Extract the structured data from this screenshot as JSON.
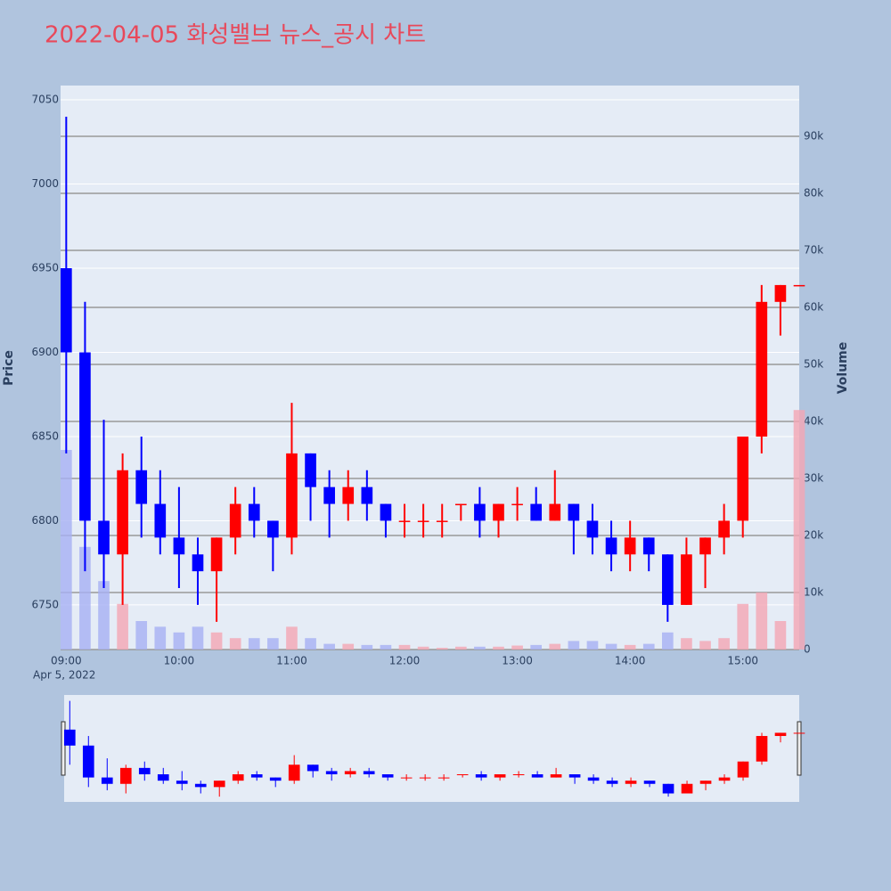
{
  "chart_data": {
    "type": "candlestick",
    "title": "2022-04-05 화성밸브 뉴스_공시 차트",
    "y_title": "Price",
    "y2_title": "Volume",
    "x_date_label": "Apr 5, 2022",
    "increasing_color": "#ff0000",
    "decreasing_color": "#0000ff",
    "volume_up_color": "#f4a6b4",
    "volume_down_color": "#a6b0f4",
    "x": [
      "2022-04-05 09:00",
      "2022-04-05 09:10",
      "2022-04-05 09:20",
      "2022-04-05 09:30",
      "2022-04-05 09:40",
      "2022-04-05 09:50",
      "2022-04-05 10:00",
      "2022-04-05 10:10",
      "2022-04-05 10:20",
      "2022-04-05 10:30",
      "2022-04-05 10:40",
      "2022-04-05 10:50",
      "2022-04-05 11:00",
      "2022-04-05 11:10",
      "2022-04-05 11:20",
      "2022-04-05 11:30",
      "2022-04-05 11:40",
      "2022-04-05 11:50",
      "2022-04-05 12:00",
      "2022-04-05 12:10",
      "2022-04-05 12:20",
      "2022-04-05 12:30",
      "2022-04-05 12:40",
      "2022-04-05 12:50",
      "2022-04-05 13:00",
      "2022-04-05 13:10",
      "2022-04-05 13:20",
      "2022-04-05 13:30",
      "2022-04-05 13:40",
      "2022-04-05 13:50",
      "2022-04-05 14:00",
      "2022-04-05 14:10",
      "2022-04-05 14:20",
      "2022-04-05 14:30",
      "2022-04-05 14:40",
      "2022-04-05 14:50",
      "2022-04-05 15:00",
      "2022-04-05 15:10",
      "2022-04-05 15:20",
      "2022-04-05 15:30"
    ],
    "open": [
      6950,
      6900,
      6800,
      6780,
      6830,
      6810,
      6790,
      6780,
      6770,
      6790,
      6810,
      6800,
      6790,
      6840,
      6820,
      6810,
      6820,
      6810,
      6800,
      6800,
      6800,
      6810,
      6810,
      6800,
      6810,
      6810,
      6800,
      6810,
      6800,
      6790,
      6780,
      6790,
      6780,
      6750,
      6780,
      6790,
      6800,
      6850,
      6930,
      6940
    ],
    "high": [
      7040,
      6930,
      6860,
      6840,
      6850,
      6830,
      6820,
      6790,
      6790,
      6820,
      6820,
      6800,
      6870,
      6840,
      6830,
      6830,
      6830,
      6810,
      6810,
      6810,
      6810,
      6810,
      6820,
      6810,
      6820,
      6820,
      6830,
      6810,
      6810,
      6800,
      6800,
      6790,
      6780,
      6790,
      6790,
      6810,
      6850,
      6940,
      6940,
      6940
    ],
    "low": [
      6840,
      6770,
      6760,
      6750,
      6790,
      6780,
      6760,
      6750,
      6740,
      6780,
      6790,
      6770,
      6780,
      6800,
      6790,
      6800,
      6800,
      6790,
      6790,
      6790,
      6790,
      6800,
      6790,
      6790,
      6800,
      6800,
      6800,
      6780,
      6780,
      6770,
      6770,
      6770,
      6740,
      6750,
      6760,
      6780,
      6790,
      6840,
      6910,
      6940
    ],
    "close": [
      6900,
      6800,
      6780,
      6830,
      6810,
      6790,
      6780,
      6770,
      6790,
      6810,
      6800,
      6790,
      6840,
      6820,
      6810,
      6820,
      6810,
      6800,
      6800,
      6800,
      6800,
      6810,
      6800,
      6810,
      6810,
      6800,
      6810,
      6800,
      6790,
      6780,
      6790,
      6780,
      6750,
      6780,
      6790,
      6800,
      6850,
      6930,
      6940,
      6940
    ],
    "volume": [
      35000,
      18000,
      12000,
      8000,
      5000,
      4000,
      3000,
      4000,
      3000,
      2000,
      2000,
      2000,
      4000,
      2000,
      1000,
      1000,
      800,
      800,
      800,
      500,
      300,
      500,
      500,
      500,
      700,
      800,
      1000,
      1500,
      1500,
      1000,
      800,
      1000,
      3000,
      2000,
      1500,
      2000,
      8000,
      10000,
      5000,
      42000
    ],
    "xlim": [
      "2022-04-05 08:57",
      "2022-04-05 15:30"
    ],
    "xticks": [
      {
        "value": "2022-04-05 09:00",
        "label": "09:00"
      },
      {
        "value": "2022-04-05 10:00",
        "label": "10:00"
      },
      {
        "value": "2022-04-05 11:00",
        "label": "11:00"
      },
      {
        "value": "2022-04-05 12:00",
        "label": "12:00"
      },
      {
        "value": "2022-04-05 13:00",
        "label": "13:00"
      },
      {
        "value": "2022-04-05 14:00",
        "label": "14:00"
      },
      {
        "value": "2022-04-05 15:00",
        "label": "15:00"
      }
    ],
    "ylim": [
      6723.5,
      7058.5
    ],
    "yticks": [
      6750,
      6800,
      6850,
      6900,
      6950,
      7000,
      7050
    ],
    "y2lim": [
      0,
      98900
    ],
    "y2ticks": [
      0,
      {
        "value": 10000,
        "label": "10k"
      },
      {
        "value": 20000,
        "label": "20k"
      },
      {
        "value": 30000,
        "label": "30k"
      },
      {
        "value": 40000,
        "label": "40k"
      },
      {
        "value": 50000,
        "label": "50k"
      },
      {
        "value": 60000,
        "label": "60k"
      },
      {
        "value": 70000,
        "label": "70k"
      },
      {
        "value": 80000,
        "label": "80k"
      },
      {
        "value": 90000,
        "label": "90k"
      }
    ],
    "grid": true,
    "rangeslider": true
  }
}
